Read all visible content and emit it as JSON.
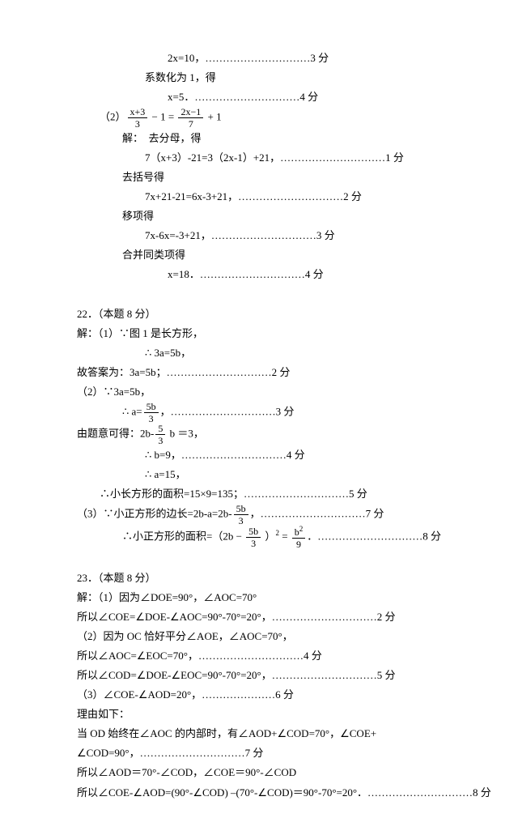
{
  "lines": [
    {
      "indent": 4,
      "text": "2x=10，…………………………3 分"
    },
    {
      "indent": 3,
      "text": "系数化为 1，得"
    },
    {
      "indent": 4,
      "text": "x=5．…………………………4 分"
    },
    {
      "indent": 1,
      "html": "（2）<span class='frac'><span class='num'>x+3</span><span class='den'>3</span></span> − 1 = <span class='frac'><span class='num'>2x−1</span><span class='den'>7</span></span> + 1"
    },
    {
      "indent": 2,
      "text": "解：　去分母，得"
    },
    {
      "indent": 3,
      "text": "7（x+3）-21=3（2x-1）+21，…………………………1 分"
    },
    {
      "indent": 2,
      "text": "去括号得"
    },
    {
      "indent": 3,
      "text": "7x+21-21=6x-3+21，…………………………2 分"
    },
    {
      "indent": 2,
      "text": "移项得"
    },
    {
      "indent": 3,
      "text": "7x-6x=-3+21，…………………………3 分"
    },
    {
      "indent": 2,
      "text": "合并同类项得"
    },
    {
      "indent": 4,
      "text": "x=18．…………………………4 分"
    },
    {
      "indent": 0,
      "text": "　"
    },
    {
      "indent": 0,
      "text": "22．（本题 8 分）"
    },
    {
      "indent": 0,
      "text": "解：（1）∵图 1 是长方形，"
    },
    {
      "indent": 3,
      "text": "∴ 3a=5b，"
    },
    {
      "indent": 0,
      "text": "故答案为：3a=5b；…………………………2 分"
    },
    {
      "indent": 0,
      "text": "（2）∵3a=5b，"
    },
    {
      "indent": 2,
      "html": "∴ a=<span class='frac'><span class='num'>5b</span><span class='den'>3</span></span>，…………………………3 分"
    },
    {
      "indent": 0,
      "html": "由题意可得：2b-<span class='frac'><span class='num'>5</span><span class='den'>3</span></span> b ＝3，"
    },
    {
      "indent": 3,
      "text": "∴ b=9，…………………………4 分"
    },
    {
      "indent": 3,
      "text": "∴ a=15，"
    },
    {
      "indent": 1,
      "text": "∴小长方形的面积=15×9=135；…………………………5 分"
    },
    {
      "indent": 0,
      "html": "（3）∵小正方形的边长=2b-a=2b-<span class='frac'><span class='num'>5b</span><span class='den'>3</span></span>，…………………………7 分"
    },
    {
      "indent": 2,
      "html": "∴小正方形的面积=（2b − <span class='frac'><span class='num'>5b</span><span class='den'>3</span></span> ）<span class='sup'>2</span> = <span class='frac'><span class='num'>b<span class='sup'>2</span></span><span class='den'>9</span></span>．…………………………8 分"
    },
    {
      "indent": 0,
      "text": "　"
    },
    {
      "indent": 0,
      "text": "23．（本题 8 分）"
    },
    {
      "indent": 0,
      "text": "解：（1）因为∠DOE=90°，∠AOC=70°"
    },
    {
      "indent": 0,
      "text": "所以∠COE=∠DOE-∠AOC=90°-70°=20°，…………………………2 分"
    },
    {
      "indent": 0,
      "text": "（2）因为 OC 恰好平分∠AOE，∠AOC=70°，"
    },
    {
      "indent": 0,
      "text": "所以∠AOC=∠EOC=70°，…………………………4 分"
    },
    {
      "indent": 0,
      "text": "所以∠COD=∠DOE-∠EOC=90°-70°=20°，…………………………5 分"
    },
    {
      "indent": 0,
      "text": "（3）∠COE-∠AOD=20°，…………………6 分"
    },
    {
      "indent": 0,
      "text": "理由如下："
    },
    {
      "indent": 0,
      "text": "当 OD 始终在∠AOC 的内部时，有∠AOD+∠COD=70°，∠COE+"
    },
    {
      "indent": 0,
      "text": "∠COD=90°，…………………………7 分"
    },
    {
      "indent": 0,
      "text": "所以∠AOD＝70°-∠COD，∠COE＝90°-∠COD"
    },
    {
      "indent": 0,
      "text": "所以∠COE-∠AOD=(90°-∠COD) –(70°-∠COD)＝90°-70°=20°．…………………………8 分"
    }
  ]
}
